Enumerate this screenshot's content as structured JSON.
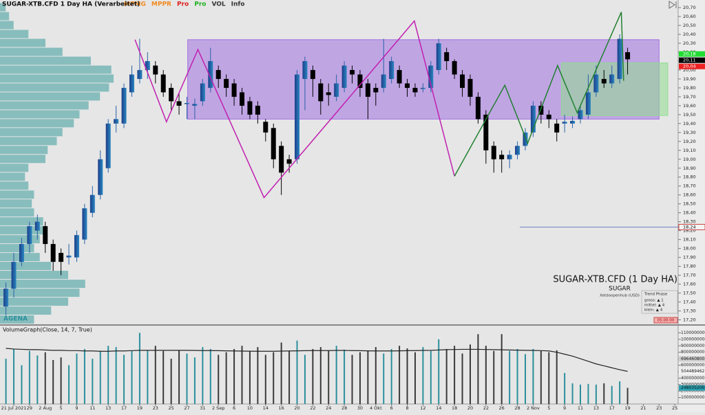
{
  "chart_data": {
    "type": "candlestick",
    "title": "SUGAR-XTB.CFD 1 Day HA (Verarbeitet)",
    "toolbar": [
      {
        "text": "MPMG",
        "color": "#f08a20"
      },
      {
        "text": "MPPR",
        "color": "#f08a20"
      },
      {
        "text": "Pro",
        "color": "#e02020"
      },
      {
        "text": "Pro",
        "color": "#20b020"
      },
      {
        "text": "VOL",
        "color": "#333333"
      },
      {
        "text": "Info",
        "color": "#333333"
      }
    ],
    "categories": [
      null,
      "21 Jul 2021",
      null,
      "29",
      null,
      "2 Aug",
      null,
      "5",
      null,
      "9",
      null,
      "11",
      null,
      "13",
      null,
      "17",
      null,
      "19",
      null,
      "23",
      null,
      "25",
      null,
      "27",
      null,
      "31",
      null,
      "2 Sep",
      null,
      "6",
      null,
      "10",
      null,
      "14",
      null,
      "16",
      null,
      "20",
      null,
      "22",
      null,
      "24",
      null,
      "28",
      null,
      "30",
      null,
      "4 Okt",
      null,
      "6",
      null,
      "8",
      null,
      "12",
      null,
      "14",
      null,
      "18",
      null,
      "20",
      null,
      "22",
      null,
      "26",
      null,
      "28",
      null,
      "2 Nov",
      null,
      "5",
      null,
      "9",
      null,
      "11",
      null,
      "13",
      null,
      "17",
      null,
      "19",
      null,
      "21",
      null,
      "23",
      null,
      "25",
      null
    ],
    "open": [
      17.35,
      17.55,
      17.85,
      18.05,
      18.2,
      18.25,
      18.05,
      17.95,
      17.9,
      17.9,
      18.1,
      18.4,
      18.6,
      18.9,
      19.4,
      19.4,
      19.75,
      19.9,
      20.0,
      20.05,
      19.95,
      19.8,
      19.65,
      19.62,
      19.6,
      19.65,
      19.8,
      20.0,
      19.9,
      19.85,
      19.75,
      19.65,
      19.6,
      19.42,
      19.35,
      19.15,
      19.0,
      19.0,
      19.9,
      20.0,
      19.85,
      19.75,
      19.7,
      19.8,
      20.0,
      19.95,
      19.85,
      19.8,
      19.8,
      19.9,
      20.0,
      19.85,
      19.8,
      19.8,
      19.8,
      20.0,
      20.2,
      20.1,
      19.95,
      19.9,
      19.7,
      19.5,
      19.15,
      19.05,
      19.0,
      19.05,
      19.15,
      19.3,
      19.6,
      19.5,
      19.4,
      19.4,
      19.4,
      19.45,
      19.5,
      19.75,
      19.9,
      19.85,
      19.9,
      20.2,
      null,
      null,
      null,
      null,
      null,
      null,
      null
    ],
    "close": [
      17.55,
      17.85,
      18.05,
      18.25,
      18.3,
      18.05,
      17.85,
      17.85,
      17.92,
      18.15,
      18.45,
      18.6,
      19.0,
      19.4,
      19.45,
      19.8,
      19.95,
      20.0,
      20.1,
      19.95,
      19.75,
      19.65,
      19.6,
      19.63,
      19.62,
      19.85,
      20.1,
      19.9,
      19.8,
      19.7,
      19.6,
      19.5,
      19.5,
      19.3,
      19.0,
      18.85,
      18.95,
      19.95,
      20.1,
      19.9,
      19.65,
      19.72,
      19.85,
      20.05,
      19.95,
      19.8,
      19.7,
      19.75,
      19.95,
      20.1,
      19.85,
      19.8,
      19.75,
      19.8,
      20.05,
      20.3,
      20.1,
      19.95,
      19.8,
      19.7,
      19.45,
      19.1,
      19.0,
      19.0,
      19.05,
      19.15,
      19.3,
      19.6,
      19.5,
      19.45,
      19.3,
      19.42,
      19.43,
      19.55,
      19.75,
      19.95,
      19.85,
      19.95,
      20.35,
      20.12,
      null,
      null,
      null,
      null,
      null,
      null,
      null
    ],
    "high": [
      17.62,
      17.95,
      18.12,
      18.3,
      18.38,
      18.3,
      18.1,
      18.0,
      18.05,
      18.2,
      18.5,
      18.7,
      19.1,
      19.45,
      19.6,
      19.85,
      20.05,
      20.35,
      20.2,
      20.1,
      20.0,
      19.85,
      19.75,
      19.7,
      19.68,
      19.9,
      20.25,
      20.05,
      19.95,
      19.9,
      19.8,
      19.7,
      19.65,
      19.45,
      19.4,
      19.2,
      19.05,
      20.0,
      20.15,
      20.05,
      19.9,
      19.85,
      19.95,
      20.1,
      20.05,
      20.0,
      19.9,
      19.85,
      20.35,
      20.15,
      20.05,
      19.9,
      19.85,
      19.85,
      20.1,
      20.35,
      20.25,
      20.12,
      20.0,
      19.95,
      19.75,
      19.55,
      19.2,
      19.1,
      19.1,
      19.2,
      19.35,
      19.65,
      19.65,
      19.55,
      19.45,
      19.5,
      19.48,
      19.6,
      19.95,
      20.05,
      20.0,
      20.05,
      20.4,
      20.25,
      null,
      null,
      null,
      null,
      null,
      null,
      null
    ],
    "low": [
      17.25,
      17.45,
      17.8,
      17.95,
      18.1,
      17.95,
      17.75,
      17.7,
      17.82,
      17.85,
      18.05,
      18.35,
      18.55,
      18.85,
      19.3,
      19.35,
      19.7,
      19.85,
      19.9,
      19.85,
      19.7,
      19.55,
      19.5,
      19.45,
      19.45,
      19.6,
      19.75,
      19.8,
      19.7,
      19.6,
      19.5,
      19.45,
      19.4,
      19.2,
      18.9,
      18.6,
      18.85,
      18.95,
      19.55,
      19.7,
      19.5,
      19.6,
      19.65,
      19.75,
      19.85,
      19.7,
      19.45,
      19.6,
      19.75,
      19.85,
      19.8,
      19.7,
      19.7,
      19.75,
      19.75,
      19.95,
      20.0,
      19.9,
      19.7,
      19.6,
      19.4,
      18.95,
      18.85,
      18.85,
      18.9,
      19.0,
      19.1,
      19.25,
      19.4,
      19.35,
      19.2,
      19.3,
      19.35,
      19.4,
      19.45,
      19.7,
      19.8,
      19.8,
      19.85,
      19.95,
      null,
      null,
      null,
      null,
      null,
      null,
      null
    ],
    "up_color": "#2860a8",
    "down_color": "#000000",
    "ylim": [
      17.15,
      20.785
    ],
    "yticks": [
      {
        "value": 20.7,
        "label": "20,70"
      },
      {
        "value": 20.6,
        "label": "20,60"
      },
      {
        "value": 20.5,
        "label": "20,50"
      },
      {
        "value": 20.4,
        "label": "20,40"
      },
      {
        "value": 20.3,
        "label": "20,30"
      },
      {
        "value": 20.2,
        "label": "20,20"
      },
      {
        "value": 20.1,
        "label": "20,10"
      },
      {
        "value": 20.0,
        "label": "20,00"
      },
      {
        "value": 19.9,
        "label": "19,90"
      },
      {
        "value": 19.8,
        "label": "19,80"
      },
      {
        "value": 19.7,
        "label": "19,70"
      },
      {
        "value": 19.6,
        "label": "19,60"
      },
      {
        "value": 19.5,
        "label": "19,50"
      },
      {
        "value": 19.4,
        "label": "19,40"
      },
      {
        "value": 19.3,
        "label": "19,30"
      },
      {
        "value": 19.2,
        "label": "19,20"
      },
      {
        "value": 19.1,
        "label": "19,10"
      },
      {
        "value": 19.0,
        "label": "19,00"
      },
      {
        "value": 18.9,
        "label": "18,90"
      },
      {
        "value": 18.8,
        "label": "18,80"
      },
      {
        "value": 18.7,
        "label": "18,70"
      },
      {
        "value": 18.6,
        "label": "18,60"
      },
      {
        "value": 18.5,
        "label": "18,50"
      },
      {
        "value": 18.4,
        "label": "18,40"
      },
      {
        "value": 18.3,
        "label": "18,30"
      },
      {
        "value": 18.2,
        "label": "18,20"
      },
      {
        "value": 18.1,
        "label": "18,10"
      },
      {
        "value": 18.0,
        "label": "18,00"
      },
      {
        "value": 17.9,
        "label": "17,90"
      },
      {
        "value": 17.8,
        "label": "17,80"
      },
      {
        "value": 17.7,
        "label": "17,70"
      },
      {
        "value": 17.6,
        "label": "17,60"
      },
      {
        "value": 17.5,
        "label": "17,50"
      },
      {
        "value": 17.4,
        "label": "17,40"
      },
      {
        "value": 17.3,
        "label": "17,30"
      },
      {
        "value": 17.2,
        "label": "17,20"
      }
    ],
    "price_markers": [
      {
        "value": 20.18,
        "label": "20,18",
        "color": "#22dd33"
      },
      {
        "value": 20.11,
        "label": "20,11",
        "color": "#000000"
      },
      {
        "value": 20.04,
        "label": "20,04",
        "color": "#ee2222"
      }
    ],
    "hlines": [
      {
        "value": 18.24,
        "label": "18,24",
        "color": "#5060c0",
        "from": 65.3
      }
    ],
    "boxes": [
      {
        "color": "#a070e0",
        "x": [
          23.1,
          83.0
        ],
        "y": [
          19.45,
          20.34
        ]
      },
      {
        "color": "#90dd90",
        "x": [
          70.6,
          84.1
        ],
        "y": [
          19.49,
          20.08
        ]
      }
    ],
    "zigzags": [
      {
        "color": "#c020b0",
        "x": [
          16.4,
          20.4,
          24.4,
          32.8,
          51.9,
          57.0
        ],
        "y": [
          20.34,
          19.42,
          20.23,
          18.57,
          20.55,
          18.81
        ]
      },
      {
        "color": "#208030",
        "x": [
          57.0,
          63.4,
          66.3,
          70.1,
          72.6,
          78.2,
          78.5
        ],
        "y": [
          18.81,
          19.83,
          19.18,
          20.05,
          19.52,
          20.65,
          19.88
        ]
      }
    ],
    "volume_profile": {
      "color": "#3a9a9a",
      "levels": [
        17.2,
        17.3,
        17.4,
        17.5,
        17.6,
        17.7,
        17.8,
        17.9,
        18.0,
        18.1,
        18.2,
        18.3,
        18.4,
        18.5,
        18.6,
        18.7,
        18.8,
        18.9,
        19.0,
        19.1,
        19.2,
        19.3,
        19.4,
        19.5,
        19.6,
        19.7,
        19.8,
        19.9,
        20.0,
        20.1,
        20.2,
        20.3,
        20.4,
        20.5,
        20.6,
        20.7
      ],
      "values": [
        30,
        45,
        60,
        70,
        75,
        60,
        45,
        35,
        30,
        35,
        40,
        38,
        30,
        28,
        30,
        25,
        22,
        25,
        40,
        42,
        50,
        55,
        65,
        70,
        78,
        88,
        96,
        100,
        98,
        80,
        55,
        40,
        25,
        12,
        8,
        5
      ]
    },
    "info": {
      "title": "SUGAR-XTB.CFD (1 Day HA)",
      "name": "SUGAR",
      "exchange": "Xetdoopenhub  (USD)",
      "trend_title": "Trend Phase",
      "trend": [
        "gross: ▲ 1",
        "mittel: ▲ 4",
        "klein: ▲ 4"
      ],
      "timer": "05:00:00",
      "logo": "AGENA"
    },
    "volume": {
      "title": "VolumeGraph(Close, 14, 7, True)",
      "values": [
        700000000,
        850000000,
        600000000,
        820000000,
        750000000,
        800000000,
        680000000,
        720000000,
        600000000,
        780000000,
        850000000,
        700000000,
        820000000,
        900000000,
        880000000,
        760000000,
        820000000,
        1100000000,
        830000000,
        900000000,
        820000000,
        700000000,
        830000000,
        780000000,
        720000000,
        880000000,
        850000000,
        760000000,
        800000000,
        850000000,
        900000000,
        820000000,
        880000000,
        760000000,
        800000000,
        950000000,
        820000000,
        980000000,
        760000000,
        850000000,
        880000000,
        820000000,
        900000000,
        840000000,
        760000000,
        800000000,
        820000000,
        880000000,
        780000000,
        850000000,
        900000000,
        860000000,
        800000000,
        880000000,
        820000000,
        1000000000,
        850000000,
        900000000,
        780000000,
        920000000,
        1080000000,
        900000000,
        820000000,
        1080000000,
        820000000,
        850000000,
        770000000,
        850000000,
        820000000,
        800000000,
        830000000,
        480000000,
        320000000,
        300000000,
        310000000,
        300000000,
        320000000,
        280000000,
        350000000,
        250000000,
        null,
        null,
        null,
        null,
        null,
        null,
        null
      ],
      "average": [
        860000000,
        850000000,
        845000000,
        840000000,
        840000000,
        835000000,
        830000000,
        830000000,
        825000000,
        825000000,
        820000000,
        820000000,
        815000000,
        815000000,
        820000000,
        820000000,
        825000000,
        830000000,
        830000000,
        830000000,
        830000000,
        830000000,
        830000000,
        830000000,
        828000000,
        826000000,
        826000000,
        824000000,
        822000000,
        820000000,
        818000000,
        816000000,
        815000000,
        815000000,
        815000000,
        818000000,
        820000000,
        822000000,
        824000000,
        826000000,
        826000000,
        826000000,
        828000000,
        828000000,
        826000000,
        824000000,
        822000000,
        820000000,
        820000000,
        820000000,
        822000000,
        824000000,
        826000000,
        828000000,
        830000000,
        835000000,
        840000000,
        842000000,
        845000000,
        845000000,
        845000000,
        842000000,
        840000000,
        838000000,
        835000000,
        832000000,
        830000000,
        828000000,
        825000000,
        820000000,
        800000000,
        770000000,
        740000000,
        700000000,
        660000000,
        620000000,
        590000000,
        560000000,
        530000000,
        504489462,
        null,
        null,
        null,
        null,
        null,
        null,
        null
      ],
      "up_color": "#2a8f9c",
      "down_color": "#3a3a3a",
      "average_color": "#222222",
      "ylim": [
        0,
        1200000000
      ],
      "yticks": [
        100000000,
        200000000,
        300000000,
        400000000,
        500000000,
        600000000,
        700000000,
        800000000,
        900000000,
        1000000000,
        1100000000
      ],
      "markers": [
        {
          "value": 696460800,
          "color": "#d0d0d0"
        },
        {
          "value": 504489462,
          "color": "#f4f4f4"
        },
        {
          "value": 248035200,
          "color": "#2aa0b0"
        }
      ]
    }
  }
}
